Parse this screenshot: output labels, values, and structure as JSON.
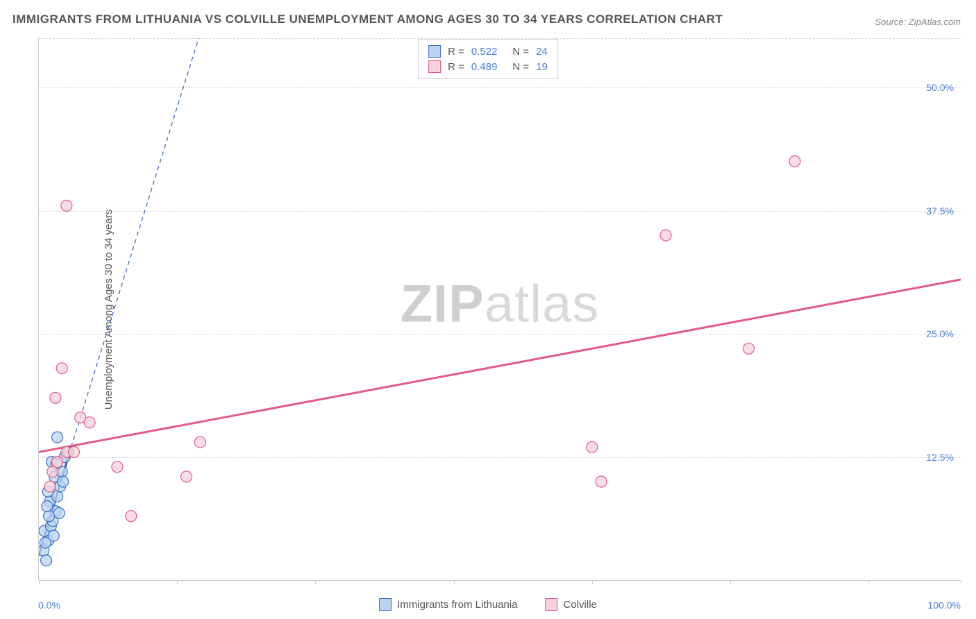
{
  "title": "IMMIGRANTS FROM LITHUANIA VS COLVILLE UNEMPLOYMENT AMONG AGES 30 TO 34 YEARS CORRELATION CHART",
  "source": "Source: ZipAtlas.com",
  "watermark": {
    "prefix": "ZIP",
    "suffix": "atlas"
  },
  "y_axis_label": "Unemployment Among Ages 30 to 34 years",
  "chart": {
    "type": "scatter",
    "xlim": [
      0,
      100
    ],
    "ylim": [
      0,
      55
    ],
    "x_tick_positions": [
      0,
      15,
      30,
      45,
      60,
      75,
      90,
      100
    ],
    "x_label_min": "0.0%",
    "x_label_max": "100.0%",
    "y_ticks": [
      {
        "value": 12.5,
        "label": "12.5%"
      },
      {
        "value": 25.0,
        "label": "25.0%"
      },
      {
        "value": 37.5,
        "label": "37.5%"
      },
      {
        "value": 50.0,
        "label": "50.0%"
      }
    ],
    "grid_color": "#d8d8d8",
    "background_color": "#ffffff",
    "marker_radius": 8,
    "marker_stroke_width": 1.2,
    "series": [
      {
        "name": "Immigrants from Lithuania",
        "key": "lithuania",
        "fill": "#b9d3f0",
        "stroke": "#3b6fc9",
        "trend_color": "#2e5fb8",
        "trend_style": "solid",
        "trend_width": 3,
        "trend_ext_style": "dashed",
        "R": "0.522",
        "N": "24",
        "points": [
          {
            "x": 0.5,
            "y": 3.0
          },
          {
            "x": 0.8,
            "y": 2.0
          },
          {
            "x": 1.0,
            "y": 4.0
          },
          {
            "x": 0.6,
            "y": 5.0
          },
          {
            "x": 1.3,
            "y": 5.5
          },
          {
            "x": 1.5,
            "y": 6.0
          },
          {
            "x": 1.8,
            "y": 7.0
          },
          {
            "x": 1.2,
            "y": 8.0
          },
          {
            "x": 2.0,
            "y": 8.5
          },
          {
            "x": 1.0,
            "y": 9.0
          },
          {
            "x": 2.3,
            "y": 9.5
          },
          {
            "x": 1.7,
            "y": 10.5
          },
          {
            "x": 2.5,
            "y": 11.0
          },
          {
            "x": 1.4,
            "y": 12.0
          },
          {
            "x": 2.8,
            "y": 12.5
          },
          {
            "x": 3.2,
            "y": 13.0
          },
          {
            "x": 2.0,
            "y": 14.5
          },
          {
            "x": 1.1,
            "y": 6.5
          },
          {
            "x": 0.9,
            "y": 7.5
          },
          {
            "x": 2.2,
            "y": 6.8
          },
          {
            "x": 1.6,
            "y": 4.5
          },
          {
            "x": 2.6,
            "y": 10.0
          },
          {
            "x": 0.7,
            "y": 3.8
          },
          {
            "x": 1.9,
            "y": 11.8
          }
        ],
        "trend": {
          "x1": 0,
          "y1": 2.5,
          "x2": 3.5,
          "y2": 13.5,
          "ext_x": 29,
          "ext_y": 90
        }
      },
      {
        "name": "Colville",
        "key": "colville",
        "fill": "#f7d2db",
        "stroke": "#e35a82",
        "trend_color": "#e35a82",
        "trend_style": "solid",
        "trend_width": 3,
        "R": "0.489",
        "N": "19",
        "points": [
          {
            "x": 1.5,
            "y": 11.0
          },
          {
            "x": 2.0,
            "y": 12.0
          },
          {
            "x": 3.0,
            "y": 13.0
          },
          {
            "x": 4.5,
            "y": 16.5
          },
          {
            "x": 5.5,
            "y": 16.0
          },
          {
            "x": 8.5,
            "y": 11.5
          },
          {
            "x": 10.0,
            "y": 6.5
          },
          {
            "x": 16.0,
            "y": 10.5
          },
          {
            "x": 17.5,
            "y": 14.0
          },
          {
            "x": 60.0,
            "y": 13.5
          },
          {
            "x": 61.0,
            "y": 10.0
          },
          {
            "x": 68.0,
            "y": 35.0
          },
          {
            "x": 77.0,
            "y": 23.5
          },
          {
            "x": 82.0,
            "y": 42.5
          },
          {
            "x": 3.0,
            "y": 38.0
          },
          {
            "x": 2.5,
            "y": 21.5
          },
          {
            "x": 1.8,
            "y": 18.5
          },
          {
            "x": 1.2,
            "y": 9.5
          },
          {
            "x": 3.8,
            "y": 13.0
          }
        ],
        "trend": {
          "x1": 0,
          "y1": 13.0,
          "x2": 100,
          "y2": 30.5
        }
      }
    ]
  },
  "legend_bottom": [
    {
      "label": "Immigrants from Lithuania",
      "fill": "#b9d3f0",
      "stroke": "#3b6fc9"
    },
    {
      "label": "Colville",
      "fill": "#f7d2db",
      "stroke": "#e35a82"
    }
  ]
}
